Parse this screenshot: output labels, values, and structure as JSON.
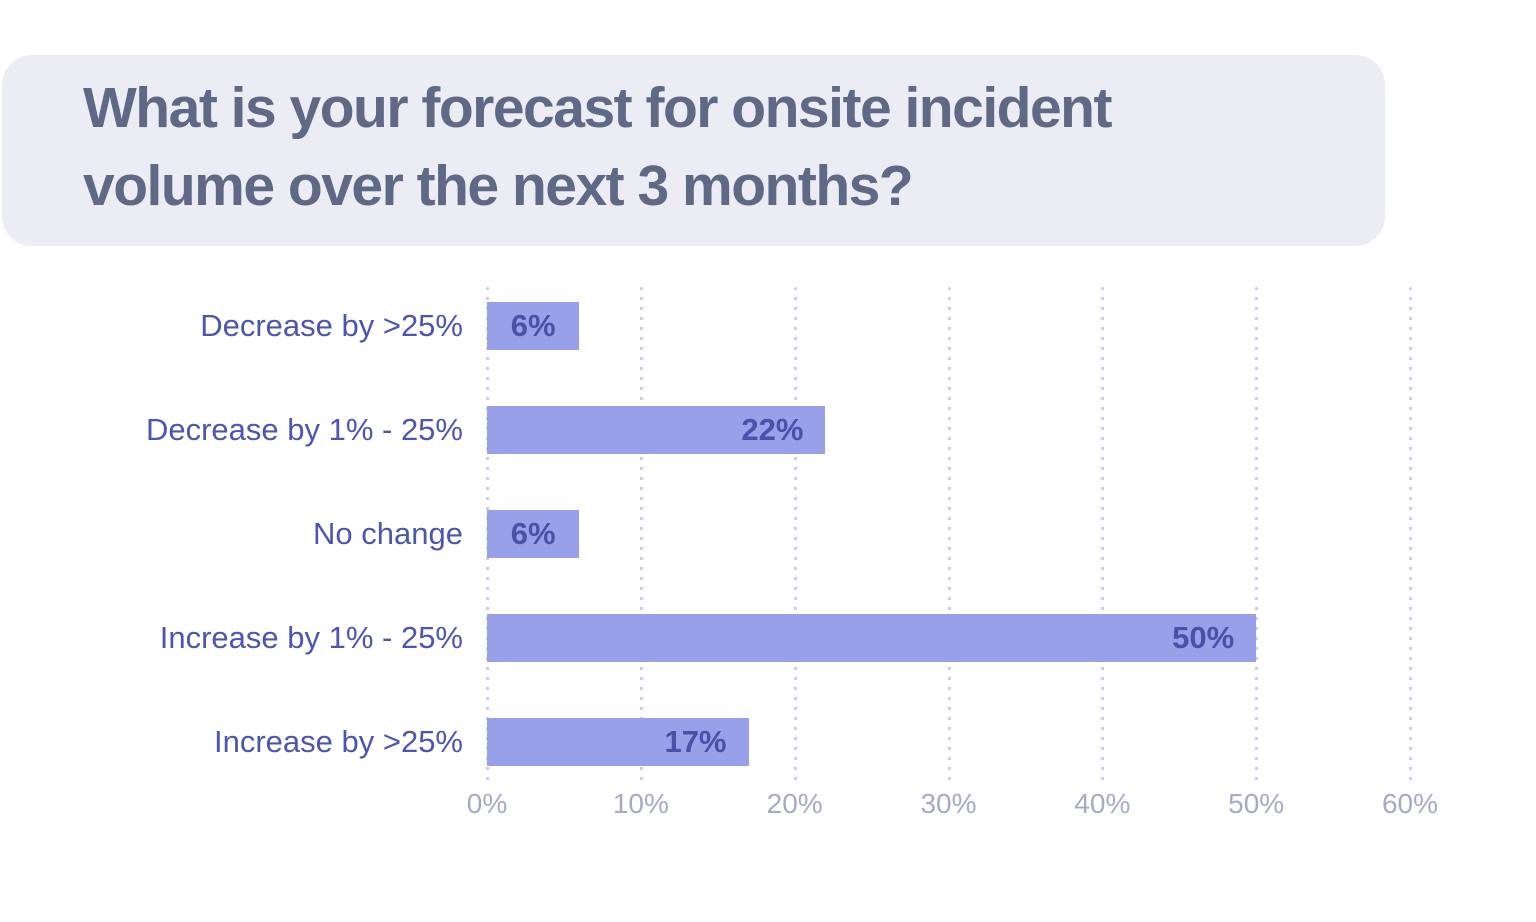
{
  "header": {
    "title": "What is your forecast for onsite incident volume over the next 3 months?",
    "title_lines": [
      "What is your forecast for onsite incident",
      "volume over the next 3 months?"
    ],
    "background_color": "#ebecf4",
    "text_color": "#5f6884"
  },
  "chart_data": {
    "type": "bar",
    "orientation": "horizontal",
    "title": "What is your forecast for onsite incident volume over the next 3 months?",
    "categories": [
      "Decrease by >25%",
      "Decrease by 1% - 25%",
      "No change",
      "Increase by 1% - 25%",
      "Increase by >25%"
    ],
    "values": [
      6,
      22,
      6,
      50,
      17
    ],
    "value_labels": [
      "6%",
      "22%",
      "6%",
      "50%",
      "17%"
    ],
    "x_tick_values": [
      0,
      10,
      20,
      30,
      40,
      50,
      60
    ],
    "x_tick_labels": [
      "0%",
      "10%",
      "20%",
      "30%",
      "40%",
      "50%",
      "60%"
    ],
    "xlim": [
      0,
      60
    ],
    "xlabel": "",
    "ylabel": "",
    "grid": "dotted-vertical",
    "legend": "none",
    "colors": {
      "bar": "#97a0e8",
      "value_label": "#4a51a8",
      "category_label": "#4c55b0",
      "tick_label": "#a7a9c6",
      "gridline": "#ccceec"
    }
  }
}
